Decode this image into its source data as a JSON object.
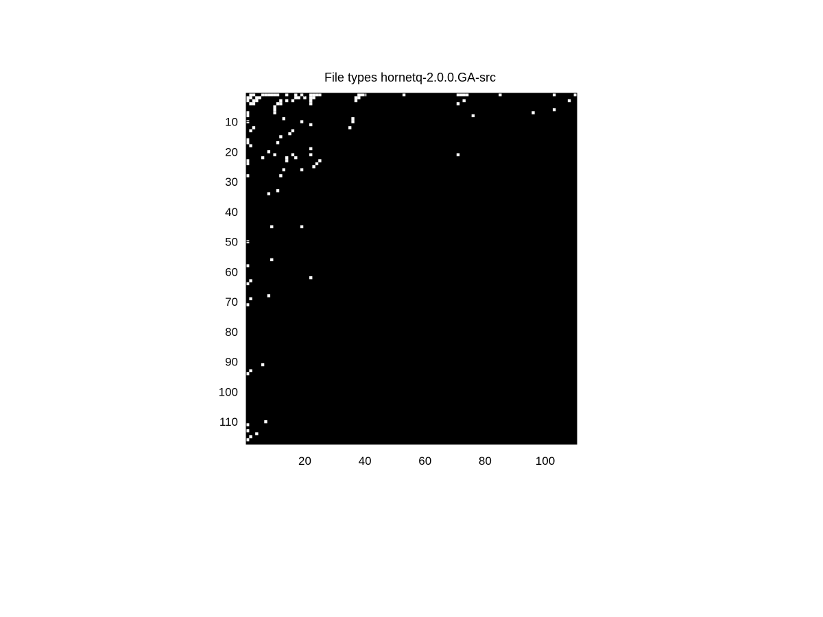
{
  "chart_data": {
    "type": "heatmap",
    "title": "File types hornetq-2.0.0.GA-src",
    "xlabel": "",
    "ylabel": "",
    "xlim": [
      0.5,
      110.5
    ],
    "ylim": [
      0.5,
      117.5
    ],
    "x_ticks": [
      20,
      40,
      60,
      80,
      100
    ],
    "y_ticks": [
      10,
      20,
      30,
      40,
      50,
      60,
      70,
      80,
      90,
      100,
      110
    ],
    "y_axis_reversed": true,
    "grid": false,
    "colormap": {
      "zero": "#000000",
      "nonzero": "#ffffff"
    },
    "points": [
      [
        2,
        1
      ],
      [
        3,
        1
      ],
      [
        6,
        1
      ],
      [
        7,
        1
      ],
      [
        8,
        1
      ],
      [
        9,
        1
      ],
      [
        10,
        1
      ],
      [
        11,
        1
      ],
      [
        14,
        1
      ],
      [
        17,
        1
      ],
      [
        19,
        1
      ],
      [
        22,
        1
      ],
      [
        23,
        1
      ],
      [
        24,
        1
      ],
      [
        25,
        1
      ],
      [
        38,
        1
      ],
      [
        39,
        1
      ],
      [
        40,
        1
      ],
      [
        53,
        1
      ],
      [
        71,
        1
      ],
      [
        72,
        1
      ],
      [
        73,
        1
      ],
      [
        74,
        1
      ],
      [
        85,
        1
      ],
      [
        103,
        1
      ],
      [
        110,
        1
      ],
      [
        1,
        2
      ],
      [
        2,
        2
      ],
      [
        4,
        2
      ],
      [
        5,
        2
      ],
      [
        17,
        2
      ],
      [
        18,
        2
      ],
      [
        20,
        2
      ],
      [
        22,
        2
      ],
      [
        23,
        2
      ],
      [
        37,
        2
      ],
      [
        38,
        2
      ],
      [
        1,
        3
      ],
      [
        3,
        3
      ],
      [
        4,
        3
      ],
      [
        12,
        3
      ],
      [
        14,
        3
      ],
      [
        16,
        3
      ],
      [
        22,
        3
      ],
      [
        37,
        3
      ],
      [
        73,
        3
      ],
      [
        108,
        3
      ],
      [
        2,
        4
      ],
      [
        3,
        4
      ],
      [
        11,
        4
      ],
      [
        12,
        4
      ],
      [
        22,
        4
      ],
      [
        71,
        4
      ],
      [
        10,
        5
      ],
      [
        10,
        6
      ],
      [
        103,
        6
      ],
      [
        1,
        7
      ],
      [
        10,
        7
      ],
      [
        96,
        7
      ],
      [
        1,
        8
      ],
      [
        76,
        8
      ],
      [
        13,
        9
      ],
      [
        36,
        9
      ],
      [
        1,
        10
      ],
      [
        19,
        10
      ],
      [
        36,
        10
      ],
      [
        22,
        11
      ],
      [
        3,
        12
      ],
      [
        35,
        12
      ],
      [
        2,
        13
      ],
      [
        16,
        13
      ],
      [
        15,
        14
      ],
      [
        12,
        15
      ],
      [
        1,
        16
      ],
      [
        1,
        17
      ],
      [
        11,
        17
      ],
      [
        2,
        18
      ],
      [
        22,
        19
      ],
      [
        8,
        20
      ],
      [
        10,
        21
      ],
      [
        16,
        21
      ],
      [
        22,
        21
      ],
      [
        71,
        21
      ],
      [
        6,
        22
      ],
      [
        14,
        22
      ],
      [
        17,
        22
      ],
      [
        1,
        23
      ],
      [
        14,
        23
      ],
      [
        25,
        23
      ],
      [
        1,
        24
      ],
      [
        24,
        24
      ],
      [
        23,
        25
      ],
      [
        13,
        26
      ],
      [
        19,
        26
      ],
      [
        12,
        28
      ],
      [
        1,
        28
      ],
      [
        11,
        33
      ],
      [
        8,
        34
      ],
      [
        9,
        45
      ],
      [
        19,
        45
      ],
      [
        1,
        50
      ],
      [
        9,
        56
      ],
      [
        1,
        58
      ],
      [
        22,
        62
      ],
      [
        2,
        63
      ],
      [
        1,
        64
      ],
      [
        8,
        68
      ],
      [
        2,
        69
      ],
      [
        1,
        71
      ],
      [
        6,
        91
      ],
      [
        2,
        93
      ],
      [
        1,
        94
      ],
      [
        7,
        110
      ],
      [
        1,
        111
      ],
      [
        1,
        113
      ],
      [
        4,
        114
      ],
      [
        2,
        115
      ],
      [
        1,
        116
      ]
    ]
  }
}
